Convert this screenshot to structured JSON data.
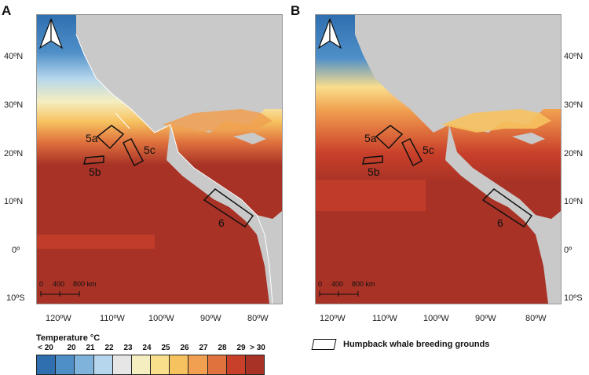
{
  "panels": [
    {
      "letter": "A"
    },
    {
      "letter": "B"
    }
  ],
  "lat_labels": [
    "40ºN",
    "30ºN",
    "20ºN",
    "10ºN",
    "0º",
    "10ºS"
  ],
  "lon_labels": [
    "120ºW",
    "110ºW",
    "100ºW",
    "90ºW",
    "80ºW"
  ],
  "regions": {
    "r5a": "5a",
    "r5b": "5b",
    "r5c": "5c",
    "r6": "6"
  },
  "scalebar": {
    "t0": "0",
    "t1": "400",
    "t2": "800 km"
  },
  "legend": {
    "title": "Temperature °C",
    "ticks": [
      "< 20",
      "20",
      "21",
      "22",
      "23",
      "24",
      "25",
      "26",
      "27",
      "28",
      "29",
      "> 30"
    ],
    "colors": [
      "#2f6fb0",
      "#4f8fc8",
      "#7fb3dc",
      "#b5d6ec",
      "#e6e6e6",
      "#f5eec0",
      "#f9de8c",
      "#f6c25f",
      "#f0a050",
      "#e0723e",
      "#c8402a",
      "#a83226"
    ]
  },
  "breeding_legend": {
    "label": "Humpback whale breeding grounds"
  }
}
